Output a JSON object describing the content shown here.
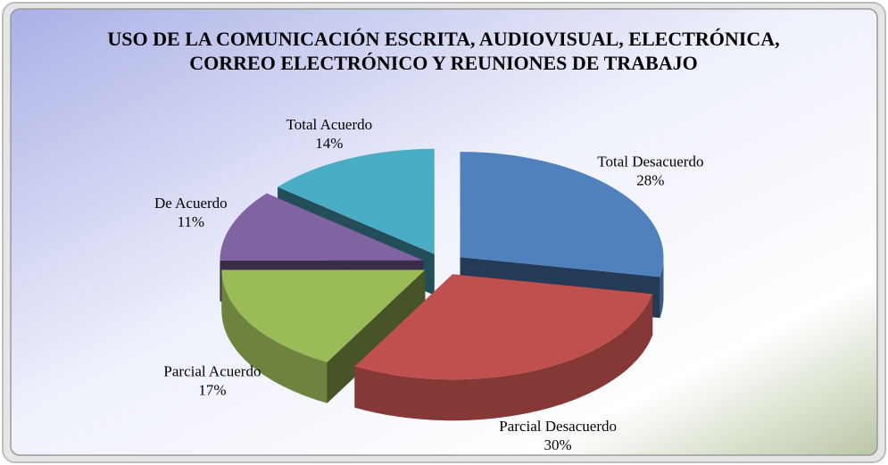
{
  "chart_data": {
    "type": "pie",
    "title": "USO DE LA COMUNICACIÓN ESCRITA,  AUDIOVISUAL, ELECTRÓNICA, CORREO ELECTRÓNICO Y REUNIONES DE TRABAJO",
    "categories": [
      "Total Desacuerdo",
      "Parcial Desacuerdo",
      "Parcial Acuerdo",
      "De Acuerdo",
      "Total Acuerdo"
    ],
    "values": [
      28,
      30,
      17,
      11,
      14
    ],
    "value_labels": [
      "28%",
      "30%",
      "17%",
      "11%",
      "14%"
    ],
    "colors": [
      "#4f81bd",
      "#c0504d",
      "#9bbb59",
      "#8064a2",
      "#4bacc6"
    ]
  }
}
